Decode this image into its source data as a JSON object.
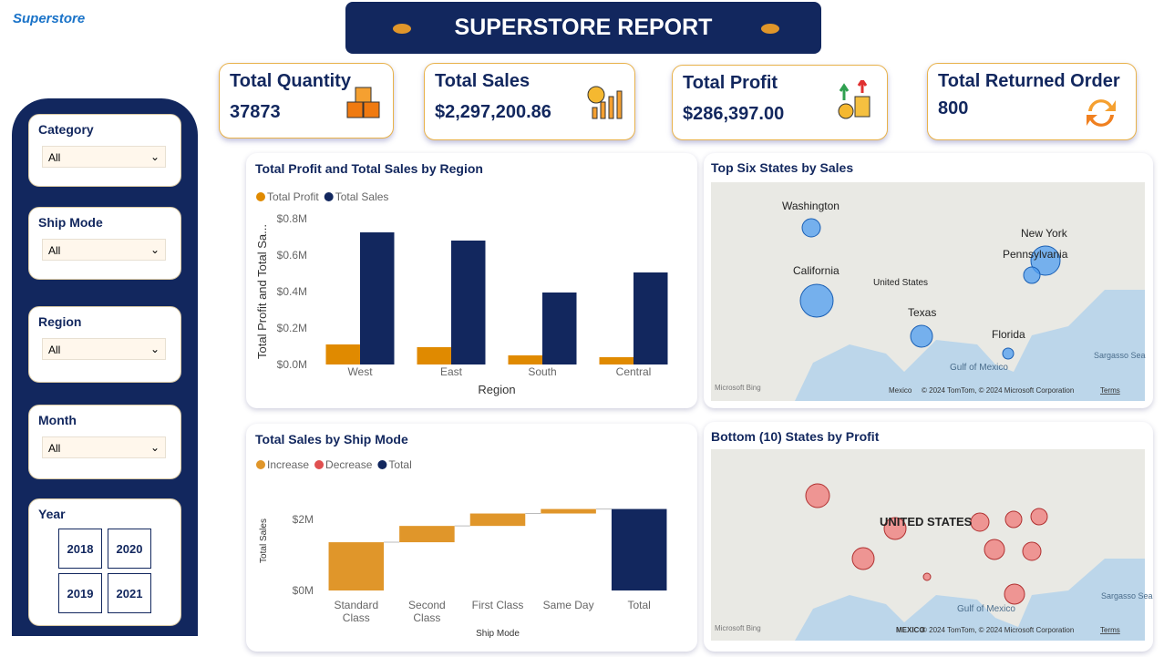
{
  "logo": "Superstore",
  "header": {
    "title": "SUPERSTORE REPORT"
  },
  "kpis": [
    {
      "label": "Total Quantity",
      "value": "37873"
    },
    {
      "label": "Total Sales",
      "value": "$2,297,200.86"
    },
    {
      "label": "Total Profit",
      "value": "$286,397.00"
    },
    {
      "label": "Total Returned Order",
      "value": "800"
    }
  ],
  "filters": [
    {
      "label": "Category",
      "value": "All"
    },
    {
      "label": "Ship Mode",
      "value": "All"
    },
    {
      "label": "Region",
      "value": "All"
    },
    {
      "label": "Month",
      "value": "All"
    }
  ],
  "year_filter": {
    "label": "Year",
    "options": [
      "2018",
      "2020",
      "2019",
      "2021"
    ]
  },
  "chart_data": [
    {
      "type": "bar",
      "title": "Total Profit and Total Sales by Region",
      "x_label": "Region",
      "y_label": "Total Profit and Total Sa...",
      "categories": [
        "West",
        "East",
        "South",
        "Central"
      ],
      "series": [
        {
          "name": "Total Profit",
          "color": "#e08a00",
          "values": [
            110000,
            95000,
            50000,
            40000
          ]
        },
        {
          "name": "Total Sales",
          "color": "#12275e",
          "values": [
            725000,
            680000,
            395000,
            505000
          ]
        }
      ],
      "ylim": [
        0,
        800000
      ],
      "yticks": [
        {
          "value": 0,
          "label": "$0.0M"
        },
        {
          "value": 200000,
          "label": "$0.2M"
        },
        {
          "value": 400000,
          "label": "$0.4M"
        },
        {
          "value": 600000,
          "label": "$0.6M"
        },
        {
          "value": 800000,
          "label": "$0.8M"
        }
      ]
    },
    {
      "type": "waterfall",
      "title": "Total Sales by Ship Mode",
      "x_label": "Ship Mode",
      "y_label": "Total Sales",
      "categories": [
        "Standard Class",
        "Second Class",
        "First Class",
        "Same Day",
        "Total"
      ],
      "series": [
        {
          "name": "Increase",
          "color": "#e0962a",
          "values": [
            1360000,
            460000,
            350000,
            127000,
            null
          ]
        },
        {
          "name": "Decrease",
          "color": "#e05050",
          "values": [
            null,
            null,
            null,
            null,
            null
          ]
        },
        {
          "name": "Total",
          "color": "#12275e",
          "values": [
            null,
            null,
            null,
            null,
            2297200
          ]
        }
      ],
      "ylim": [
        0,
        2800000
      ],
      "yticks": [
        {
          "value": 0,
          "label": "$0M"
        },
        {
          "value": 2000000,
          "label": "$2M"
        }
      ]
    }
  ],
  "maps": [
    {
      "title": "Top Six States by Sales",
      "labels": [
        "Washington",
        "California",
        "United States",
        "Texas",
        "New York",
        "Pennsylvania",
        "Florida"
      ],
      "water_labels": [
        "Gulf of Mexico",
        "Sargasso Sea"
      ],
      "credits": [
        "Microsoft Bing",
        "Mexico",
        "© 2024 TomTom, © 2024 Microsoft Corporation",
        "Terms"
      ]
    },
    {
      "title": "Bottom (10) States by Profit",
      "labels": [
        "UNITED STATES"
      ],
      "water_labels": [
        "Gulf of Mexico",
        "Sargasso Sea"
      ],
      "credits": [
        "Microsoft Bing",
        "MEXICO",
        "© 2024 TomTom, © 2024 Microsoft Corporation",
        "Terms"
      ]
    }
  ]
}
